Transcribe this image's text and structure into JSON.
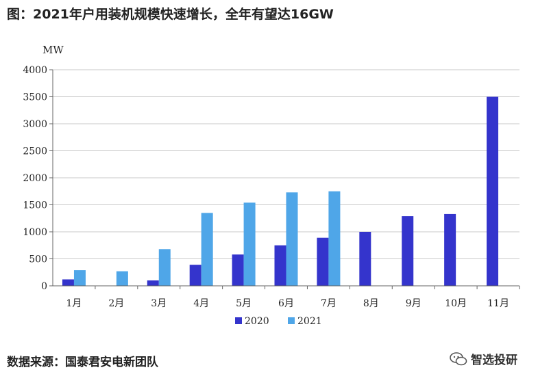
{
  "header": {
    "title": "图：2021年户用装机规模快速增长，全年有望达16GW"
  },
  "footer": {
    "source": "数据来源：国泰君安电新团队",
    "watermark": "智选投研"
  },
  "colors": {
    "series_2020": "#3434cc",
    "series_2021": "#4fa6e8",
    "grid": "#c8c8c8",
    "axis": "#666666"
  },
  "chart_data": {
    "type": "bar",
    "title": "",
    "xlabel": "",
    "ylabel": "MW",
    "ylim": [
      0,
      4000
    ],
    "yticks": [
      0,
      500,
      1000,
      1500,
      2000,
      2500,
      3000,
      3500,
      4000
    ],
    "grid": true,
    "legend_position": "bottom",
    "categories": [
      "1月",
      "2月",
      "3月",
      "4月",
      "5月",
      "6月",
      "7月",
      "8月",
      "9月",
      "10月",
      "11月"
    ],
    "series": [
      {
        "name": "2020",
        "values": [
          120,
          0,
          100,
          390,
          580,
          750,
          890,
          1000,
          1290,
          1330,
          3500
        ]
      },
      {
        "name": "2021",
        "values": [
          290,
          270,
          680,
          1350,
          1540,
          1730,
          1750,
          null,
          null,
          null,
          null
        ]
      }
    ]
  }
}
